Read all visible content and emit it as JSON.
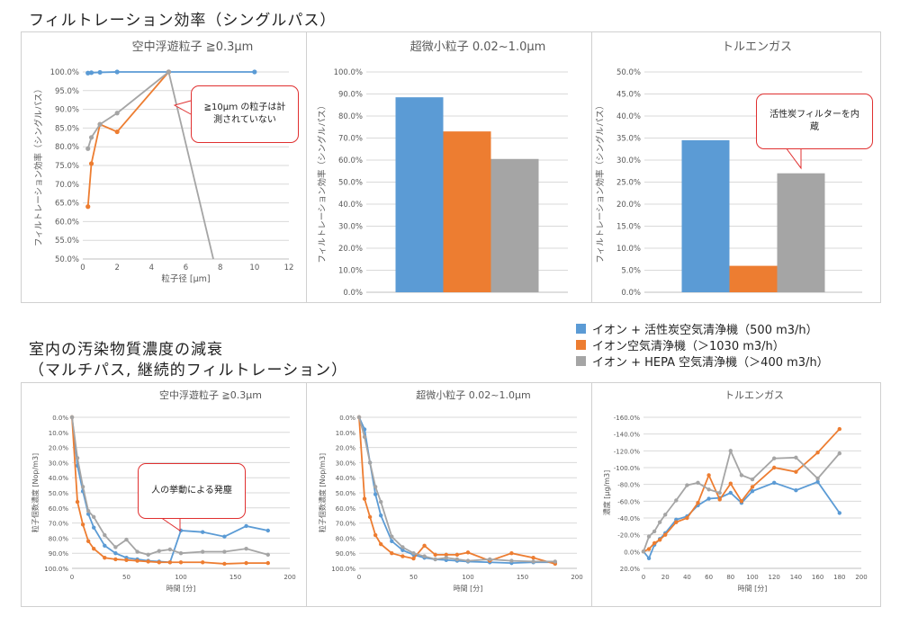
{
  "headings": {
    "top": "フィルトレーション効率（シングルパス）",
    "bottom_line1": "室内の汚染物質濃度の減衰",
    "bottom_line2": "（マルチパス, 継続的フィルトレーション）"
  },
  "legend": {
    "items": [
      {
        "label": "イオン + 活性炭空気清浄機（500 m3/h）",
        "color": "#5b9bd5"
      },
      {
        "label": "イオン空気清浄機（＞1030 m3/h）",
        "color": "#ed7d31"
      },
      {
        "label": "イオン + HEPA 空気清浄機（＞400 m3/h）",
        "color": "#a5a5a5"
      }
    ]
  },
  "callouts": {
    "c1": "≧10μｍ の粒子は計測されていない",
    "c2": "活性炭フィルターを内蔵",
    "c3": "人の挙動による発塵"
  },
  "colors": {
    "blue": "#5b9bd5",
    "orange": "#ed7d31",
    "gray": "#a5a5a5"
  },
  "chart_data": [
    {
      "id": "top1",
      "type": "line",
      "title": "空中浮遊粒子 ≧0.3μm",
      "xlabel": "粒子径 [μm]",
      "ylabel": "フィルトレーション効率（シングルパス）",
      "xlim": [
        0,
        12
      ],
      "xticks": [
        0,
        2,
        4,
        6,
        8,
        10,
        12
      ],
      "xtick_labels": [
        "0",
        "2",
        "4",
        "6",
        "8",
        "10",
        "12"
      ],
      "ylim": [
        50,
        100
      ],
      "yticks": [
        50,
        55,
        60,
        65,
        70,
        75,
        80,
        85,
        90,
        95,
        100
      ],
      "ytick_labels": [
        "50.0%",
        "55.0%",
        "60.0%",
        "65.0%",
        "70.0%",
        "75.0%",
        "80.0%",
        "85.0%",
        "90.0%",
        "95.0%",
        "100.0%"
      ],
      "grid": "horizontal",
      "series": [
        {
          "color": "blue",
          "x": [
            0.3,
            0.5,
            1,
            2,
            5,
            10
          ],
          "y": [
            99.7,
            99.8,
            99.9,
            100,
            100,
            100
          ]
        },
        {
          "color": "orange",
          "x": [
            0.3,
            0.5,
            1,
            2,
            5
          ],
          "y": [
            64,
            75.5,
            86,
            84,
            100
          ]
        },
        {
          "color": "gray",
          "x": [
            0.3,
            0.5,
            1,
            2,
            5,
            7.6
          ],
          "y": [
            79.5,
            82.5,
            86,
            89,
            100,
            50
          ]
        }
      ]
    },
    {
      "id": "top2",
      "type": "bar",
      "title": "超微小粒子 0.02~1.0μm",
      "ylabel": "フィルトレーション効率（シングルパス）",
      "ylim": [
        0,
        100
      ],
      "yticks": [
        0,
        10,
        20,
        30,
        40,
        50,
        60,
        70,
        80,
        90,
        100
      ],
      "ytick_labels": [
        "0.0%",
        "10.0%",
        "20.0%",
        "30.0%",
        "40.0%",
        "50.0%",
        "60.0%",
        "70.0%",
        "80.0%",
        "90.0%",
        "100.0%"
      ],
      "grid": "horizontal",
      "bars": [
        {
          "color": "blue",
          "value": 88.5
        },
        {
          "color": "orange",
          "value": 73
        },
        {
          "color": "gray",
          "value": 60.5
        }
      ]
    },
    {
      "id": "top3",
      "type": "bar",
      "title": "トルエンガス",
      "ylabel": "フィルトレーション効率（シングルパス）",
      "ylim": [
        0,
        50
      ],
      "yticks": [
        0,
        5,
        10,
        15,
        20,
        25,
        30,
        35,
        40,
        45,
        50
      ],
      "ytick_labels": [
        "0.0%",
        "5.0%",
        "10.0%",
        "15.0%",
        "20.0%",
        "25.0%",
        "30.0%",
        "35.0%",
        "40.0%",
        "45.0%",
        "50.0%"
      ],
      "grid": "horizontal",
      "bars": [
        {
          "color": "blue",
          "value": 34.5
        },
        {
          "color": "orange",
          "value": 6
        },
        {
          "color": "gray",
          "value": 27
        }
      ]
    },
    {
      "id": "bot1",
      "type": "line",
      "title": "空中浮遊粒子 ≧0.3μm",
      "xlabel": "時間 [分]",
      "ylabel": "粒子個数濃度 [Nop/m3]",
      "xlim": [
        0,
        200
      ],
      "xticks": [
        0,
        50,
        100,
        150,
        200
      ],
      "xtick_labels": [
        "0",
        "50",
        "100",
        "150",
        "200"
      ],
      "ylim": [
        0,
        100
      ],
      "yreverse": true,
      "yticks": [
        0,
        10,
        20,
        30,
        40,
        50,
        60,
        70,
        80,
        90,
        100
      ],
      "ytick_labels": [
        "0.0%",
        "10.0%",
        "20.0%",
        "30.0%",
        "40.0%",
        "50.0%",
        "60.0%",
        "70.0%",
        "80.0%",
        "90.0%",
        "100.0%"
      ],
      "grid": "horizontal",
      "series": [
        {
          "color": "blue",
          "x": [
            0,
            5,
            10,
            15,
            20,
            30,
            40,
            50,
            60,
            70,
            80,
            90,
            100,
            120,
            140,
            160,
            180
          ],
          "y": [
            0,
            32,
            49,
            64,
            73,
            85,
            90,
            93,
            94,
            95,
            95.5,
            96,
            75,
            76,
            79,
            72,
            75
          ]
        },
        {
          "color": "orange",
          "x": [
            0,
            5,
            10,
            15,
            20,
            30,
            40,
            50,
            60,
            70,
            80,
            90,
            100,
            120,
            140,
            160,
            180
          ],
          "y": [
            0,
            56,
            71,
            82,
            87,
            93,
            94,
            94.5,
            95,
            95.5,
            96,
            96,
            96,
            96,
            97,
            96.5,
            96.5
          ]
        },
        {
          "color": "gray",
          "x": [
            0,
            5,
            10,
            15,
            20,
            30,
            40,
            50,
            60,
            70,
            80,
            90,
            100,
            120,
            140,
            160,
            180
          ],
          "y": [
            0,
            27,
            46,
            62,
            66,
            78,
            86,
            81,
            89,
            91,
            88.5,
            87.5,
            90,
            89,
            89,
            87,
            91
          ]
        }
      ]
    },
    {
      "id": "bot2",
      "type": "line",
      "title": "超微小粒子 0.02~1.0μm",
      "xlabel": "時間 [分]",
      "ylabel": "粒子個数濃度 [Nop/m3]",
      "xlim": [
        0,
        200
      ],
      "xticks": [
        0,
        50,
        100,
        150,
        200
      ],
      "xtick_labels": [
        "0",
        "50",
        "100",
        "150",
        "200"
      ],
      "ylim": [
        0,
        100
      ],
      "yreverse": true,
      "yticks": [
        0,
        10,
        20,
        30,
        40,
        50,
        60,
        70,
        80,
        90,
        100
      ],
      "ytick_labels": [
        "0.0%",
        "10.0%",
        "20.0%",
        "30.0%",
        "40.0%",
        "50.0%",
        "60.0%",
        "70.0%",
        "80.0%",
        "90.0%",
        "100.0%"
      ],
      "grid": "horizontal",
      "series": [
        {
          "color": "blue",
          "x": [
            0,
            5,
            10,
            15,
            20,
            30,
            40,
            50,
            60,
            70,
            80,
            90,
            100,
            120,
            140,
            160,
            180
          ],
          "y": [
            0,
            8,
            30,
            51,
            65,
            82,
            88,
            91,
            93,
            94,
            94.5,
            95,
            95.5,
            96,
            96.5,
            96,
            96
          ]
        },
        {
          "color": "orange",
          "x": [
            0,
            5,
            10,
            15,
            20,
            30,
            40,
            50,
            60,
            70,
            80,
            90,
            100,
            120,
            140,
            160,
            180
          ],
          "y": [
            0,
            54,
            66,
            78,
            84,
            90,
            92,
            93.5,
            85,
            91,
            91,
            91,
            89.5,
            95,
            90,
            93,
            97
          ]
        },
        {
          "color": "gray",
          "x": [
            0,
            5,
            10,
            15,
            20,
            30,
            40,
            50,
            60,
            70,
            80,
            90,
            100,
            120,
            140,
            160,
            180
          ],
          "y": [
            0,
            13,
            30,
            46,
            56,
            79,
            86,
            90,
            92,
            94,
            93,
            94,
            95,
            94,
            95,
            95.5,
            95.5
          ]
        }
      ]
    },
    {
      "id": "bot3",
      "type": "line",
      "title": "トルエンガス",
      "xlabel": "時間 [分]",
      "ylabel": "濃度 [μg/m3]",
      "xlim": [
        0,
        200
      ],
      "xticks": [
        0,
        20,
        40,
        60,
        80,
        100,
        120,
        140,
        160,
        180,
        200
      ],
      "xtick_labels": [
        "0",
        "20",
        "40",
        "60",
        "80",
        "100",
        "120",
        "140",
        "160",
        "180",
        "200"
      ],
      "ylim": [
        -160,
        20
      ],
      "yreverse": true,
      "yticks": [
        -160,
        -140,
        -120,
        -100,
        -80,
        -60,
        -40,
        -20,
        0,
        20
      ],
      "ytick_labels": [
        "-160.0%",
        "-140.0%",
        "-120.0%",
        "-100.0%",
        "-80.0%",
        "-60.0%",
        "-40.0%",
        "-20.0%",
        "0.0%",
        "20.0%"
      ],
      "grid": "horizontal",
      "series": [
        {
          "color": "blue",
          "x": [
            0,
            5,
            10,
            15,
            20,
            30,
            40,
            50,
            60,
            70,
            80,
            90,
            100,
            120,
            140,
            160,
            180
          ],
          "y": [
            0,
            8,
            -8,
            -15,
            -22,
            -38,
            -42,
            -55,
            -63,
            -64,
            -70,
            -58,
            -72,
            -82,
            -73,
            -83,
            -46
          ]
        },
        {
          "color": "orange",
          "x": [
            0,
            5,
            10,
            15,
            20,
            30,
            40,
            50,
            60,
            70,
            80,
            90,
            100,
            120,
            140,
            160,
            180
          ],
          "y": [
            0,
            -3,
            -10,
            -14,
            -20,
            -35,
            -40,
            -58,
            -91,
            -62,
            -81,
            -60,
            -77,
            -100,
            -95,
            -118,
            -146
          ]
        },
        {
          "color": "gray",
          "x": [
            0,
            5,
            10,
            15,
            20,
            30,
            40,
            50,
            60,
            70,
            80,
            90,
            100,
            120,
            140,
            160,
            180
          ],
          "y": [
            0,
            -18,
            -24,
            -35,
            -44,
            -61,
            -79,
            -82,
            -74,
            -70,
            -120,
            -91,
            -86,
            -111,
            -112,
            -87,
            -117
          ]
        }
      ]
    }
  ]
}
